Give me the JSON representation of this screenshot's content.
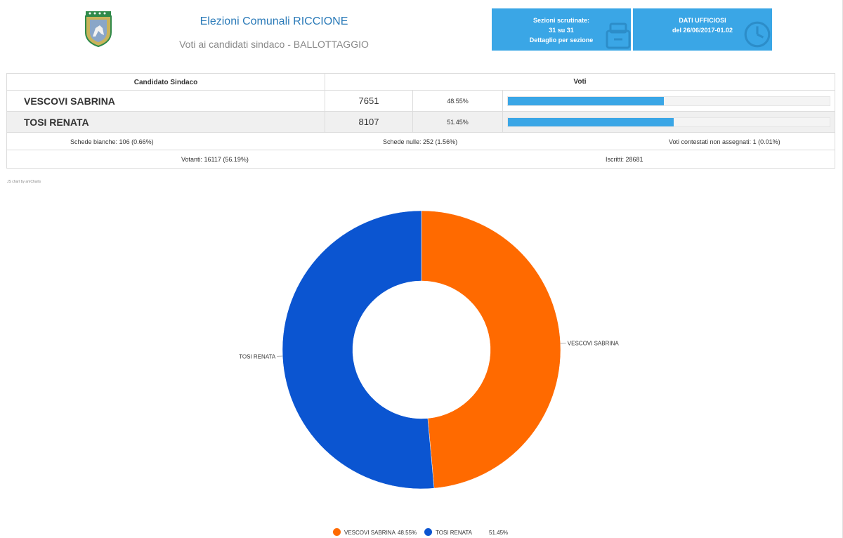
{
  "header": {
    "title": "Elezioni Comunali  RICCIONE",
    "subtitle": "Voti ai candidati sindaco - BALLOTTAGGIO",
    "logo_icon": "municipal-crest-icon"
  },
  "info_boxes": [
    {
      "lines": [
        "Sezioni scrutinate:",
        "31 su 31",
        "Dettaglio per sezione"
      ],
      "icon": "archive-icon"
    },
    {
      "lines": [
        "DATI UFFICIOSI",
        "del 26/06/2017-01.02"
      ],
      "icon": "clock-icon"
    }
  ],
  "table": {
    "headers": {
      "candidate": "Candidato Sindaco",
      "votes": "Voti"
    },
    "candidates": [
      {
        "name": "VESCOVI SABRINA",
        "votes": "7651",
        "percent": "48.55%",
        "share": 0.4855
      },
      {
        "name": "TOSI RENATA",
        "votes": "8107",
        "percent": "51.45%",
        "share": 0.5145
      }
    ],
    "stats": {
      "blank": "Schede bianche: 106 (0.66%)",
      "null": "Schede nulle: 252 (1.56%)",
      "contested": "Voti contestati non assegnati: 1 (0.01%)",
      "voters": "Votanti: 16117 (56.19%)",
      "registered": "Iscritti: 28681"
    }
  },
  "credit": "JS chart by amCharts",
  "colors": {
    "accent": "#3aa6e6",
    "vescovi": "#ff6a00",
    "tosi": "#0b55d1"
  },
  "chart_data": {
    "type": "pie",
    "donut": true,
    "slices": [
      {
        "label": "VESCOVI SABRINA",
        "value": 48.55,
        "color": "#ff6a00"
      },
      {
        "label": "TOSI RENATA",
        "value": 51.45,
        "color": "#0b55d1"
      }
    ],
    "legend": [
      {
        "label": "VESCOVI SABRINA",
        "value": "48.55%"
      },
      {
        "label": "TOSI RENATA",
        "value": "51.45%"
      }
    ]
  }
}
